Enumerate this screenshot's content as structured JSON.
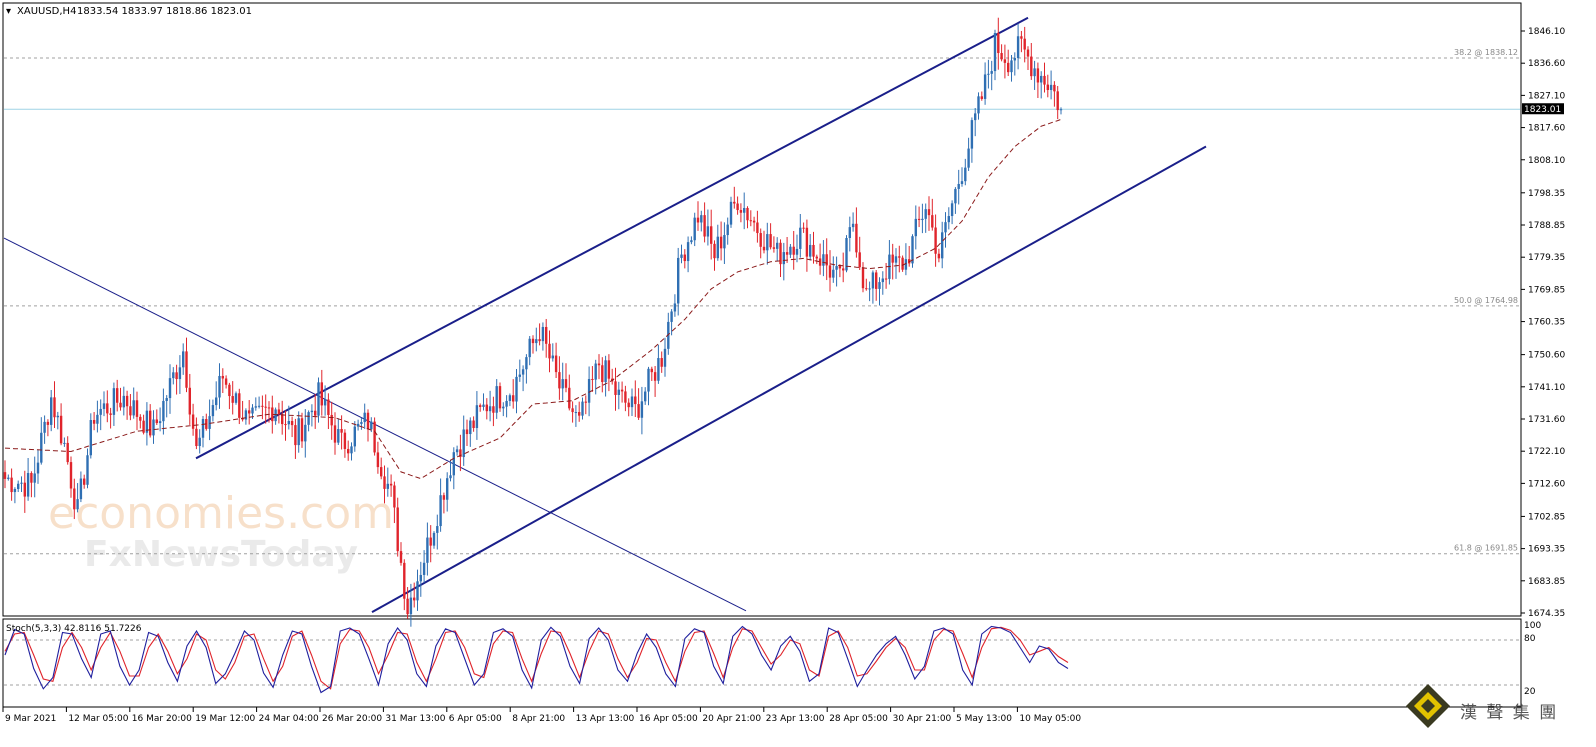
{
  "header": {
    "symbol": "XAUUSD,H4",
    "ohlc": "1833.54 1833.97 1818.86 1823.01"
  },
  "price_axis": {
    "ticks": [
      "1846.10",
      "1836.60",
      "1827.10",
      "1817.60",
      "1808.10",
      "1798.35",
      "1788.85",
      "1779.35",
      "1769.85",
      "1760.35",
      "1750.60",
      "1741.10",
      "1731.60",
      "1722.10",
      "1712.60",
      "1702.85",
      "1693.35",
      "1683.85",
      "1674.35"
    ],
    "current_price": "1823.01"
  },
  "fibo": [
    {
      "label": "38.2 @ 1838.12",
      "price": 1838.12
    },
    {
      "label": "50.0 @ 1764.98",
      "price": 1764.98
    },
    {
      "label": "61.8 @ 1691.85",
      "price": 1691.85
    }
  ],
  "stoch": {
    "label": "Stoch(5,3,3) 42.8116 51.7226",
    "levels": [
      "100",
      "80",
      "20"
    ]
  },
  "time_axis": [
    "9 Mar 2021",
    "12 Mar 05:00",
    "16 Mar 20:00",
    "19 Mar 12:00",
    "24 Mar 04:00",
    "26 Mar 20:00",
    "31 Mar 13:00",
    "6 Apr 05:00",
    "8 Apr 21:00",
    "13 Apr 13:00",
    "16 Apr 05:00",
    "20 Apr 21:00",
    "23 Apr 13:00",
    "28 Apr 05:00",
    "30 Apr 21:00",
    "5 May 13:00",
    "10 May 05:00"
  ],
  "watermark": {
    "line1": "economies.com",
    "line2": "FxNewsToday"
  },
  "logo": {
    "text": "漢 聲 集 團"
  },
  "colors": {
    "bull": "#2f6fb3",
    "bear": "#e0242b",
    "channel": "#1a1f8a",
    "ma": "#8b1a1a",
    "stoch_main": "#1f1f9e",
    "stoch_signal": "#e0242b",
    "current_line": "#9fd3e6",
    "watermark": "#f2c7a0"
  },
  "chart_data": {
    "type": "candlestick",
    "symbol": "XAUUSD",
    "timeframe": "H4",
    "ylim": [
      1674.35,
      1852
    ],
    "anchors": [
      [
        0,
        1714
      ],
      [
        8,
        1712
      ],
      [
        14,
        1738
      ],
      [
        18,
        1724
      ],
      [
        22,
        1704
      ],
      [
        27,
        1733
      ],
      [
        36,
        1738
      ],
      [
        45,
        1728
      ],
      [
        54,
        1752
      ],
      [
        58,
        1722
      ],
      [
        66,
        1744
      ],
      [
        74,
        1730
      ],
      [
        82,
        1736
      ],
      [
        88,
        1726
      ],
      [
        95,
        1738
      ],
      [
        102,
        1724
      ],
      [
        110,
        1731
      ],
      [
        117,
        1709
      ],
      [
        122,
        1676
      ],
      [
        128,
        1694
      ],
      [
        136,
        1722
      ],
      [
        146,
        1736
      ],
      [
        154,
        1741
      ],
      [
        162,
        1758
      ],
      [
        168,
        1741
      ],
      [
        174,
        1730
      ],
      [
        180,
        1748
      ],
      [
        186,
        1738
      ],
      [
        191,
        1734
      ],
      [
        199,
        1750
      ],
      [
        205,
        1780
      ],
      [
        210,
        1792
      ],
      [
        215,
        1780
      ],
      [
        222,
        1797
      ],
      [
        228,
        1788
      ],
      [
        234,
        1780
      ],
      [
        241,
        1786
      ],
      [
        249,
        1777
      ],
      [
        253,
        1772
      ],
      [
        257,
        1790
      ],
      [
        261,
        1768
      ],
      [
        267,
        1776
      ],
      [
        273,
        1778
      ],
      [
        279,
        1795
      ],
      [
        283,
        1780
      ],
      [
        287,
        1795
      ],
      [
        293,
        1816
      ],
      [
        297,
        1830
      ],
      [
        300,
        1842
      ],
      [
        304,
        1838
      ],
      [
        308,
        1841
      ],
      [
        313,
        1834
      ],
      [
        317,
        1830
      ],
      [
        320,
        1823
      ]
    ],
    "ma_anchors": [
      [
        0,
        1723
      ],
      [
        20,
        1722
      ],
      [
        40,
        1728
      ],
      [
        60,
        1730
      ],
      [
        80,
        1733
      ],
      [
        100,
        1732
      ],
      [
        112,
        1728
      ],
      [
        120,
        1716
      ],
      [
        126,
        1714
      ],
      [
        136,
        1720
      ],
      [
        150,
        1726
      ],
      [
        160,
        1736
      ],
      [
        172,
        1737
      ],
      [
        184,
        1743
      ],
      [
        196,
        1752
      ],
      [
        206,
        1761
      ],
      [
        214,
        1770
      ],
      [
        222,
        1775
      ],
      [
        232,
        1778
      ],
      [
        242,
        1779
      ],
      [
        252,
        1777
      ],
      [
        262,
        1776
      ],
      [
        272,
        1777
      ],
      [
        282,
        1782
      ],
      [
        290,
        1790
      ],
      [
        298,
        1803
      ],
      [
        306,
        1812
      ],
      [
        314,
        1818
      ],
      [
        320,
        1820
      ]
    ],
    "stoch_main": [
      60,
      94,
      88,
      42,
      15,
      30,
      90,
      88,
      55,
      30,
      88,
      92,
      45,
      20,
      40,
      90,
      85,
      50,
      25,
      72,
      92,
      70,
      22,
      35,
      62,
      92,
      80,
      36,
      17,
      60,
      92,
      88,
      45,
      10,
      18,
      92,
      96,
      88,
      55,
      20,
      75,
      96,
      80,
      35,
      18,
      72,
      95,
      90,
      55,
      20,
      35,
      90,
      95,
      85,
      40,
      16,
      80,
      97,
      85,
      45,
      22,
      82,
      96,
      80,
      40,
      25,
      62,
      88,
      70,
      35,
      18,
      82,
      95,
      90,
      45,
      22,
      85,
      98,
      88,
      60,
      40,
      72,
      85,
      65,
      25,
      35,
      96,
      90,
      55,
      18,
      40,
      60,
      75,
      85,
      60,
      28,
      45,
      92,
      96,
      88,
      40,
      20,
      88,
      98,
      96,
      90,
      70,
      50,
      72,
      68,
      50,
      42
    ],
    "stoch_signal": [
      65,
      88,
      90,
      60,
      28,
      25,
      70,
      90,
      70,
      40,
      70,
      90,
      65,
      32,
      32,
      70,
      88,
      65,
      35,
      55,
      88,
      80,
      40,
      28,
      50,
      85,
      88,
      55,
      25,
      45,
      85,
      92,
      60,
      25,
      15,
      75,
      94,
      92,
      70,
      35,
      60,
      90,
      88,
      50,
      25,
      55,
      90,
      92,
      70,
      35,
      30,
      75,
      92,
      90,
      55,
      25,
      62,
      92,
      90,
      62,
      30,
      65,
      92,
      88,
      55,
      30,
      50,
      82,
      80,
      50,
      25,
      65,
      90,
      92,
      62,
      30,
      70,
      95,
      92,
      70,
      48,
      60,
      80,
      75,
      40,
      32,
      85,
      92,
      70,
      32,
      35,
      52,
      70,
      82,
      70,
      40,
      40,
      80,
      94,
      92,
      62,
      30,
      70,
      95,
      97,
      93,
      80,
      60,
      65,
      70,
      58,
      50
    ],
    "channel_upper": [
      {
        "x": "19 Mar 12:00",
        "y": 1720
      },
      {
        "x": "10 May 05:00",
        "y": 1850
      }
    ],
    "channel_lower": [
      {
        "x": "29 Mar 09:00",
        "y": 1674.6
      },
      {
        "x": "12 May 13:00",
        "y": 1812
      }
    ],
    "downtrend_line": [
      {
        "x": "9 Mar 2021",
        "y": 1785
      },
      {
        "x": "14 Apr 09:00",
        "y": 1675
      }
    ],
    "fibonacci": [
      {
        "level": "38.2",
        "price": 1838.12
      },
      {
        "level": "50.0",
        "price": 1764.98
      },
      {
        "level": "61.8",
        "price": 1691.85
      }
    ],
    "stochastic": {
      "k": 5,
      "d": 3,
      "slowing": 3,
      "main": 42.8116,
      "signal": 51.7226,
      "levels": [
        20,
        80
      ]
    },
    "last_close": 1823.01
  }
}
